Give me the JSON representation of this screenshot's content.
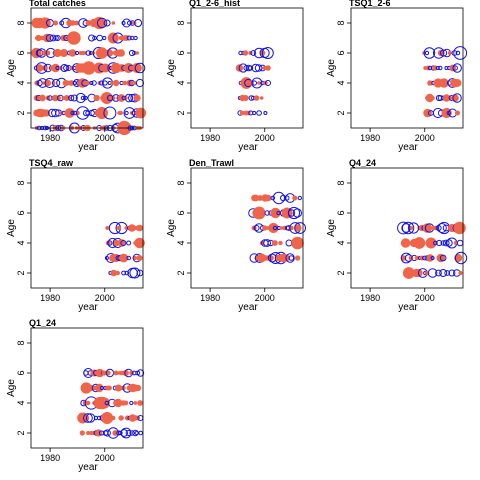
{
  "colors": {
    "positive": "#f06449",
    "negative": "#1414e0",
    "frame": "#000000"
  },
  "chart_data": [
    {
      "type": "scatter",
      "title": "Total catches",
      "xlabel": "year",
      "ylabel": "Age",
      "xlim": [
        1973,
        2014
      ],
      "ylim": [
        1,
        9
      ],
      "xticks": [
        1980,
        2000
      ],
      "yticks": [
        2,
        4,
        6,
        8
      ],
      "x": [
        1975,
        2013
      ],
      "y": [
        1,
        8
      ],
      "density": [
        {
          "age": 8,
          "fill": 0.5
        },
        {
          "age": 7,
          "fill": 0.45
        },
        {
          "age": 6,
          "fill": 0.6
        },
        {
          "age": 5,
          "fill": 0.75
        },
        {
          "age": 4,
          "fill": 0.6
        },
        {
          "age": 3,
          "fill": 0.6
        },
        {
          "age": 2,
          "fill": 0.55
        },
        {
          "age": 1,
          "fill": 0.6
        }
      ]
    },
    {
      "type": "scatter",
      "title": "Q1_2-6_hist",
      "xlabel": "year",
      "ylabel": "Age",
      "xlim": [
        1973,
        2014
      ],
      "ylim": [
        1,
        9
      ],
      "xticks": [
        1980,
        2000
      ],
      "yticks": [
        2,
        4,
        6,
        8
      ],
      "x": [
        1991,
        2001
      ],
      "y": [
        2,
        6
      ],
      "density": [
        {
          "age": 6,
          "fill": 0.55
        },
        {
          "age": 5,
          "fill": 0.55
        },
        {
          "age": 4,
          "fill": 0.6
        },
        {
          "age": 3,
          "fill": 0.55
        },
        {
          "age": 2,
          "fill": 0.55
        }
      ]
    },
    {
      "type": "scatter",
      "title": "TSQ1_2-6",
      "xlabel": "year",
      "ylabel": "Age",
      "xlim": [
        1973,
        2014
      ],
      "ylim": [
        1,
        9
      ],
      "xticks": [
        1980,
        2000
      ],
      "yticks": [
        2,
        4,
        6,
        8
      ],
      "x": [
        2000,
        2013
      ],
      "y": [
        2,
        6
      ],
      "density": [
        {
          "age": 6,
          "fill": 0.5
        },
        {
          "age": 5,
          "fill": 0.6
        },
        {
          "age": 4,
          "fill": 0.55
        },
        {
          "age": 3,
          "fill": 0.6
        },
        {
          "age": 2,
          "fill": 0.55
        }
      ]
    },
    {
      "type": "scatter",
      "title": "TSQ4_raw",
      "xlabel": "year",
      "ylabel": "Age",
      "xlim": [
        1973,
        2014
      ],
      "ylim": [
        1,
        9
      ],
      "xticks": [
        1980,
        2000
      ],
      "yticks": [
        2,
        4,
        6,
        8
      ],
      "x": [
        2001,
        2013
      ],
      "y": [
        2,
        5
      ],
      "density": [
        {
          "age": 5,
          "fill": 0.55
        },
        {
          "age": 4,
          "fill": 0.5
        },
        {
          "age": 3,
          "fill": 0.55
        },
        {
          "age": 2,
          "fill": 0.5
        }
      ]
    },
    {
      "type": "scatter",
      "title": "Den_Trawl",
      "xlabel": "year",
      "ylabel": "Age",
      "xlim": [
        1973,
        2014
      ],
      "ylim": [
        1,
        9
      ],
      "xticks": [
        1980,
        2000
      ],
      "yticks": [
        2,
        4,
        6,
        8
      ],
      "x": [
        1996,
        2013
      ],
      "y": [
        3,
        7
      ],
      "density": [
        {
          "age": 7,
          "fill": 0.5
        },
        {
          "age": 6,
          "fill": 0.7
        },
        {
          "age": 5,
          "fill": 0.6
        },
        {
          "age": 4,
          "fill": 0.45
        },
        {
          "age": 3,
          "fill": 0.6
        }
      ]
    },
    {
      "type": "scatter",
      "title": "Q4_24",
      "xlabel": "year",
      "ylabel": "Age",
      "xlim": [
        1973,
        2014
      ],
      "ylim": [
        1,
        9
      ],
      "xticks": [
        1980,
        2000
      ],
      "yticks": [
        2,
        4,
        6,
        8
      ],
      "x": [
        1992,
        2013
      ],
      "y": [
        2,
        5
      ],
      "density": [
        {
          "age": 5,
          "fill": 0.55
        },
        {
          "age": 4,
          "fill": 0.55
        },
        {
          "age": 3,
          "fill": 0.6
        },
        {
          "age": 2,
          "fill": 0.6
        }
      ]
    },
    {
      "type": "scatter",
      "title": "Q1_24",
      "xlabel": "year",
      "ylabel": "Age",
      "xlim": [
        1973,
        2014
      ],
      "ylim": [
        1,
        9
      ],
      "xticks": [
        1980,
        2000
      ],
      "yticks": [
        2,
        4,
        6,
        8
      ],
      "x": [
        1992,
        2013
      ],
      "y": [
        2,
        6
      ],
      "density": [
        {
          "age": 6,
          "fill": 0.6
        },
        {
          "age": 5,
          "fill": 0.65
        },
        {
          "age": 4,
          "fill": 0.6
        },
        {
          "age": 3,
          "fill": 0.55
        },
        {
          "age": 2,
          "fill": 0.6
        }
      ]
    }
  ]
}
